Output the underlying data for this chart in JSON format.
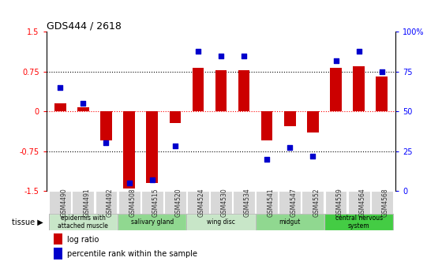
{
  "title": "GDS444 / 2618",
  "samples": [
    "GSM4490",
    "GSM4491",
    "GSM4492",
    "GSM4508",
    "GSM4515",
    "GSM4520",
    "GSM4524",
    "GSM4530",
    "GSM4534",
    "GSM4541",
    "GSM4547",
    "GSM4552",
    "GSM4559",
    "GSM4564",
    "GSM4568"
  ],
  "log_ratio": [
    0.15,
    0.07,
    -0.55,
    -1.45,
    -1.35,
    -0.22,
    0.82,
    0.78,
    0.78,
    -0.55,
    -0.28,
    -0.4,
    0.82,
    0.85,
    0.65
  ],
  "percentile": [
    65,
    55,
    30,
    5,
    7,
    28,
    88,
    85,
    85,
    20,
    27,
    22,
    82,
    88,
    75
  ],
  "ylim_left": [
    -1.5,
    1.5
  ],
  "ylim_right": [
    0,
    100
  ],
  "yticks_left": [
    -1.5,
    -0.75,
    0,
    0.75,
    1.5
  ],
  "yticks_right": [
    0,
    25,
    50,
    75,
    100
  ],
  "ytick_labels_left": [
    "-1.5",
    "-0.75",
    "0",
    "0.75",
    "1.5"
  ],
  "ytick_labels_right": [
    "0",
    "25",
    "50",
    "75",
    "100%"
  ],
  "hlines": [
    -0.75,
    0.0,
    0.75
  ],
  "hline_colors": [
    "black",
    "red",
    "black"
  ],
  "hline_styles": [
    "dotted",
    "dotted",
    "dotted"
  ],
  "bar_color": "#cc0000",
  "dot_color": "#0000cc",
  "tissue_groups": [
    {
      "label": "epidermis with\nattached muscle",
      "start": 0,
      "end": 2,
      "color": "#c8e6c8"
    },
    {
      "label": "salivary gland",
      "start": 3,
      "end": 5,
      "color": "#90d890"
    },
    {
      "label": "wing disc",
      "start": 6,
      "end": 8,
      "color": "#c8e6c8"
    },
    {
      "label": "midgut",
      "start": 9,
      "end": 11,
      "color": "#90d890"
    },
    {
      "label": "central nervous\nsystem",
      "start": 12,
      "end": 14,
      "color": "#44cc44"
    }
  ],
  "legend_items": [
    {
      "label": "log ratio",
      "color": "#cc0000"
    },
    {
      "label": "percentile rank within the sample",
      "color": "#0000cc"
    }
  ],
  "bar_width": 0.5,
  "dot_size": 25
}
